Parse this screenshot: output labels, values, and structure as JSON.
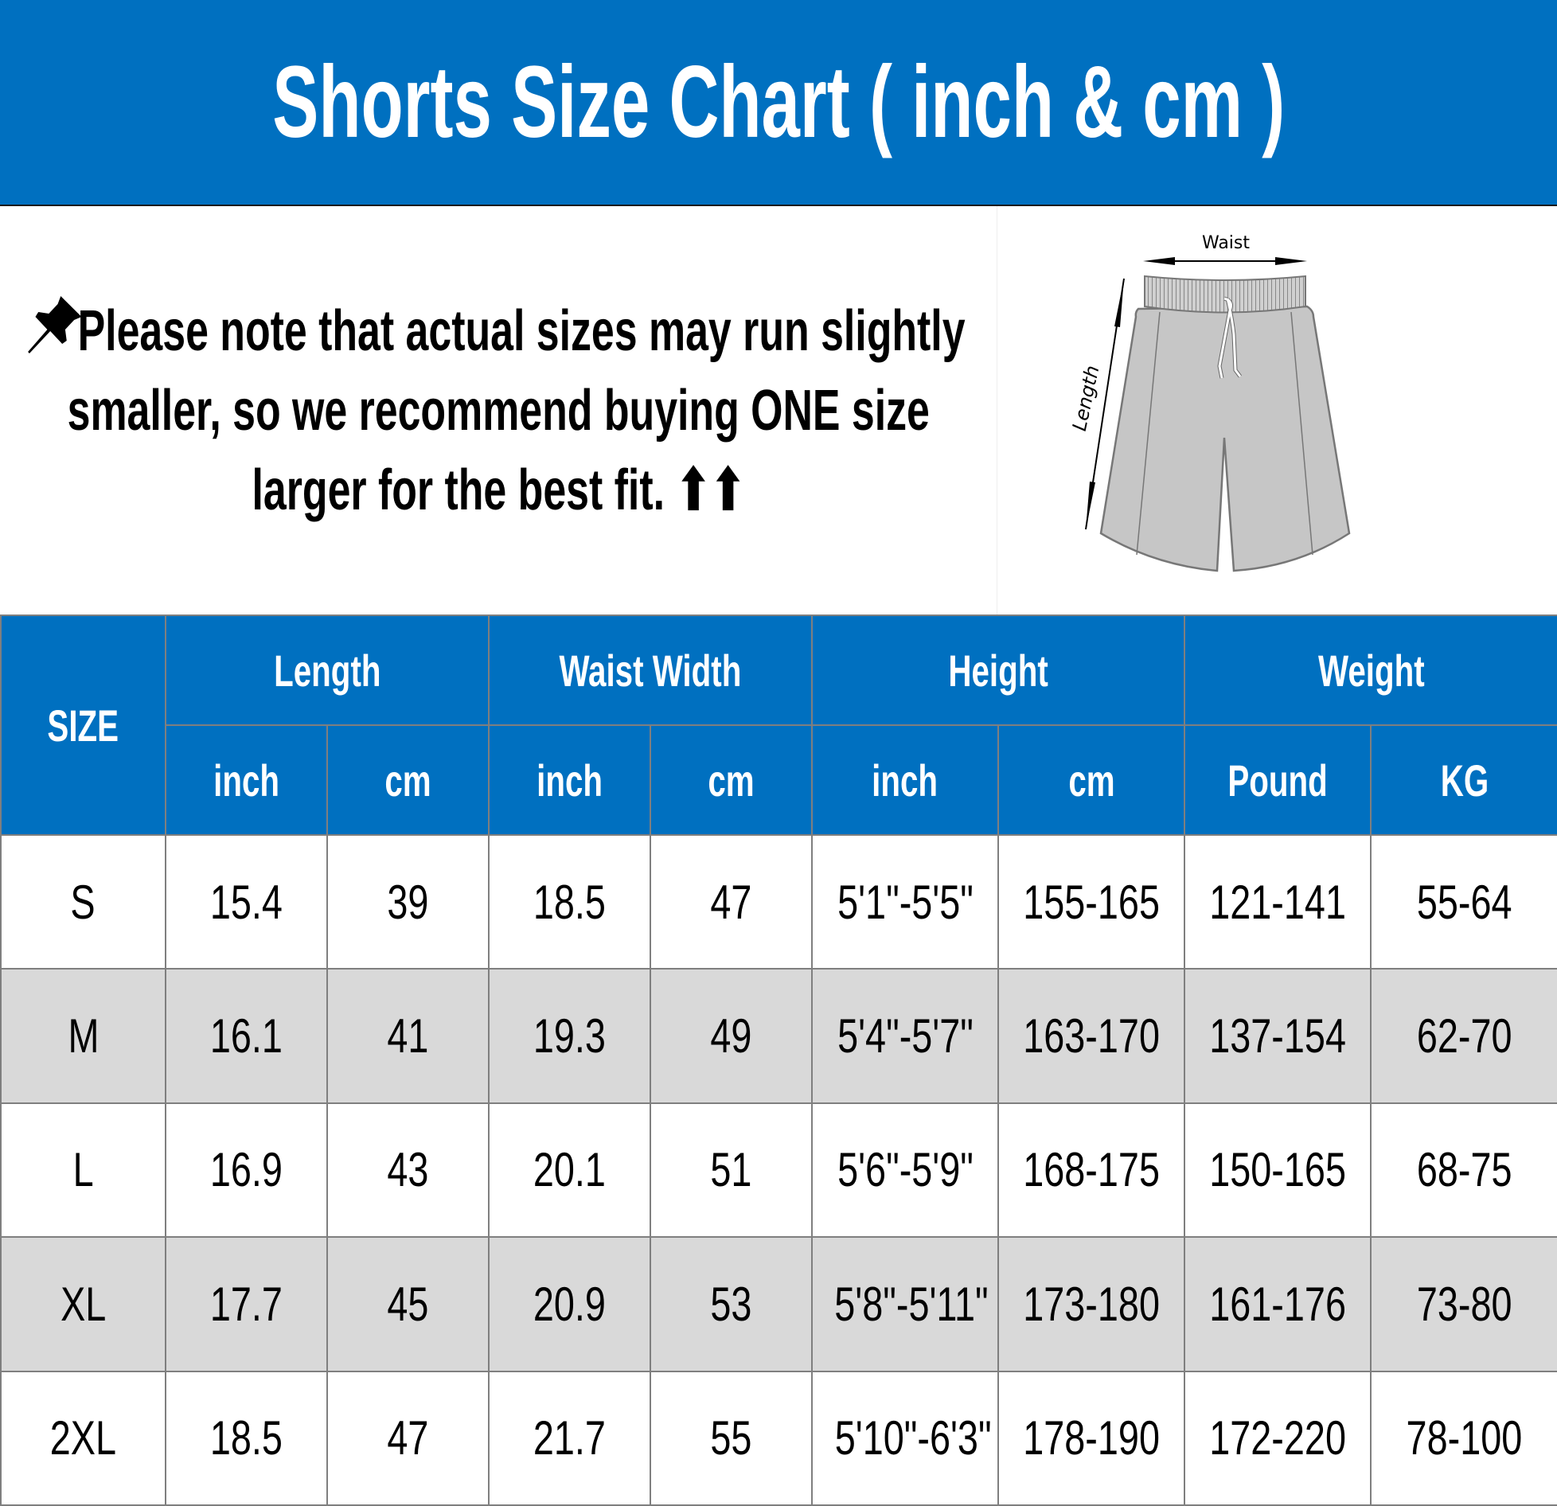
{
  "title": "Shorts Size Chart ( inch & cm )",
  "note": {
    "icon": "pushpin-icon",
    "lines": [
      "Please note that actual sizes may run slightly",
      "smaller, so we recommend buying ONE size",
      "larger for the best fit. ⬆⬆"
    ]
  },
  "diagram": {
    "waist_label": "Waist",
    "length_label": "Length"
  },
  "colors": {
    "header_blue": "#0070C0",
    "alt_row": "#D9D9D9",
    "border": "#7F7F7F"
  },
  "table": {
    "size_header": "SIZE",
    "groups": [
      "Length",
      "Waist Width",
      "Height",
      "Weight"
    ],
    "units": [
      "inch",
      "cm",
      "inch",
      "cm",
      "inch",
      "cm",
      "Pound",
      "KG"
    ],
    "rows": [
      [
        "S",
        "15.4",
        "39",
        "18.5",
        "47",
        "5'1\"-5'5\"",
        "155-165",
        "121-141",
        "55-64"
      ],
      [
        "M",
        "16.1",
        "41",
        "19.3",
        "49",
        "5'4\"-5'7\"",
        "163-170",
        "137-154",
        "62-70"
      ],
      [
        "L",
        "16.9",
        "43",
        "20.1",
        "51",
        "5'6\"-5'9\"",
        "168-175",
        "150-165",
        "68-75"
      ],
      [
        "XL",
        "17.7",
        "45",
        "20.9",
        "53",
        "5'8\"-5'11\"",
        "173-180",
        "161-176",
        "73-80"
      ],
      [
        "2XL",
        "18.5",
        "47",
        "21.7",
        "55",
        "5'10\"-6'3\"",
        "178-190",
        "172-220",
        "78-100"
      ]
    ]
  }
}
